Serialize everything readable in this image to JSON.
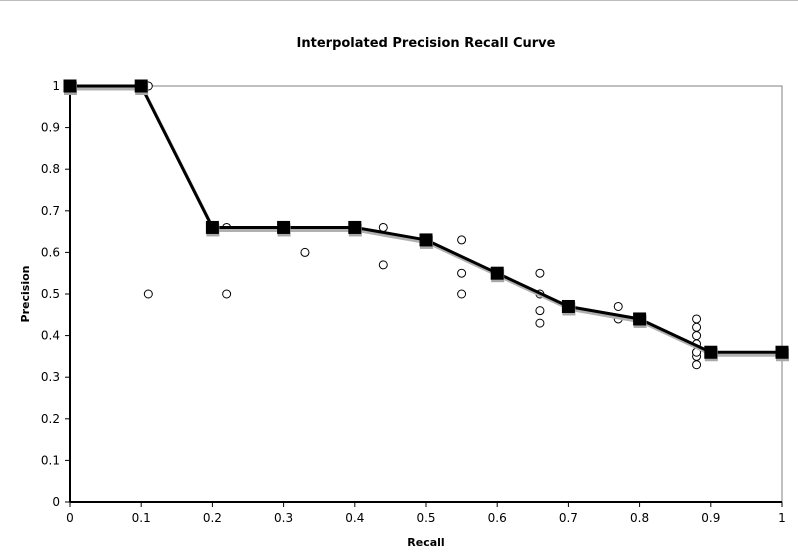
{
  "chart_data": {
    "type": "line",
    "title": "Interpolated Precision Recall Curve",
    "xlabel": "Recall",
    "ylabel": "Precision",
    "xlim": [
      0,
      1
    ],
    "ylim": [
      0,
      1
    ],
    "x_ticks": [
      "0",
      "0.1",
      "0.2",
      "0.3",
      "0.4",
      "0.5",
      "0.6",
      "0.7",
      "0.8",
      "0.9",
      "1"
    ],
    "y_ticks": [
      "0",
      "0.1",
      "0.2",
      "0.3",
      "0.4",
      "0.5",
      "0.6",
      "0.7",
      "0.8",
      "0.9",
      "1"
    ],
    "grid": false,
    "legend": "none",
    "series": [
      {
        "kind": "interpolated-line",
        "marker": "square",
        "color": "#000000",
        "x": [
          0,
          0.1,
          0.2,
          0.3,
          0.4,
          0.5,
          0.6,
          0.7,
          0.8,
          0.9,
          1.0
        ],
        "y": [
          1.0,
          1.0,
          0.66,
          0.66,
          0.66,
          0.63,
          0.55,
          0.47,
          0.44,
          0.36,
          0.36
        ]
      },
      {
        "kind": "raw-points",
        "marker": "circle",
        "color": "#000000",
        "x": [
          0.11,
          0.11,
          0.22,
          0.22,
          0.33,
          0.44,
          0.44,
          0.55,
          0.55,
          0.55,
          0.66,
          0.66,
          0.66,
          0.66,
          0.77,
          0.77,
          0.88,
          0.88,
          0.88,
          0.88,
          0.88,
          0.88,
          0.88,
          0.88
        ],
        "y": [
          1.0,
          0.5,
          0.66,
          0.5,
          0.6,
          0.66,
          0.57,
          0.63,
          0.55,
          0.5,
          0.55,
          0.5,
          0.46,
          0.43,
          0.47,
          0.44,
          0.44,
          0.42,
          0.4,
          0.38,
          0.36,
          0.35,
          0.33,
          0.36
        ]
      }
    ]
  }
}
